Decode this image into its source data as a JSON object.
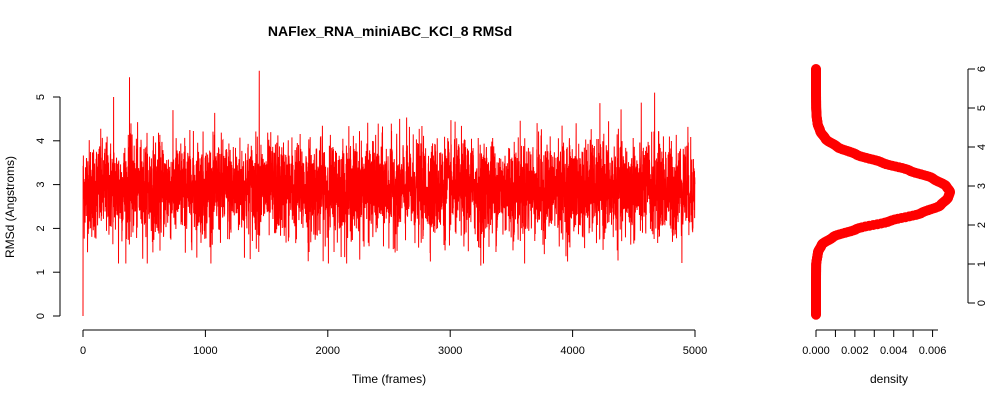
{
  "chart_data": [
    {
      "type": "line",
      "title": "NAFlex_RNA_miniABC_KCl_8 RMSd",
      "xlabel": "Time (frames)",
      "ylabel": "RMSd (Angstroms)",
      "xlim": [
        0,
        5000
      ],
      "ylim": [
        0,
        5.6
      ],
      "xticks": [
        0,
        1000,
        2000,
        3000,
        4000,
        5000
      ],
      "yticks": [
        0,
        1,
        2,
        3,
        4,
        5
      ],
      "grid": false,
      "series": [
        {
          "color": "#ff0000",
          "n_frames": 5000,
          "first_value": 0.0,
          "mean": 2.9,
          "sd": 0.55,
          "min": 1.2,
          "max": 5.6,
          "peaks": [
            [
              380,
              5.45
            ],
            [
              1440,
              5.6
            ],
            [
              4670,
              5.1
            ],
            [
              250,
              5.0
            ]
          ],
          "troughs": [
            [
              290,
              1.2
            ],
            [
              3250,
              1.15
            ],
            [
              1840,
              1.25
            ]
          ]
        }
      ]
    },
    {
      "type": "line",
      "title": "",
      "xlabel": "density",
      "ylabel": "",
      "xlim": [
        0,
        0.007
      ],
      "ylim": [
        0,
        6
      ],
      "xticks": [
        "0.000",
        "0.002",
        "0.004",
        "0.006"
      ],
      "yticks": [
        0,
        1,
        2,
        3,
        4,
        5,
        6
      ],
      "yaxis_side": "right",
      "grid": false,
      "series": [
        {
          "color": "#ff0000",
          "marker": "circle",
          "peak_density": 0.0069,
          "peak_at": 2.85,
          "y_range": [
            -0.3,
            6.0
          ],
          "density": [
            [
              -0.3,
              0.0
            ],
            [
              0.0,
              0.0
            ],
            [
              0.5,
              0.0
            ],
            [
              1.0,
              1e-05
            ],
            [
              1.3,
              0.0001
            ],
            [
              1.5,
              0.0003
            ],
            [
              1.7,
              0.0009
            ],
            [
              1.9,
              0.0021
            ],
            [
              2.1,
              0.0038
            ],
            [
              2.3,
              0.0054
            ],
            [
              2.5,
              0.0064
            ],
            [
              2.7,
              0.0068
            ],
            [
              2.85,
              0.0069
            ],
            [
              3.0,
              0.0067
            ],
            [
              3.2,
              0.006
            ],
            [
              3.4,
              0.0048
            ],
            [
              3.6,
              0.0034
            ],
            [
              3.8,
              0.0021
            ],
            [
              4.0,
              0.0011
            ],
            [
              4.2,
              0.0005
            ],
            [
              4.4,
              0.00022
            ],
            [
              4.6,
              8e-05
            ],
            [
              4.8,
              3e-05
            ],
            [
              5.0,
              1e-05
            ],
            [
              5.5,
              0.0
            ],
            [
              6.0,
              0.0
            ]
          ]
        }
      ]
    }
  ]
}
